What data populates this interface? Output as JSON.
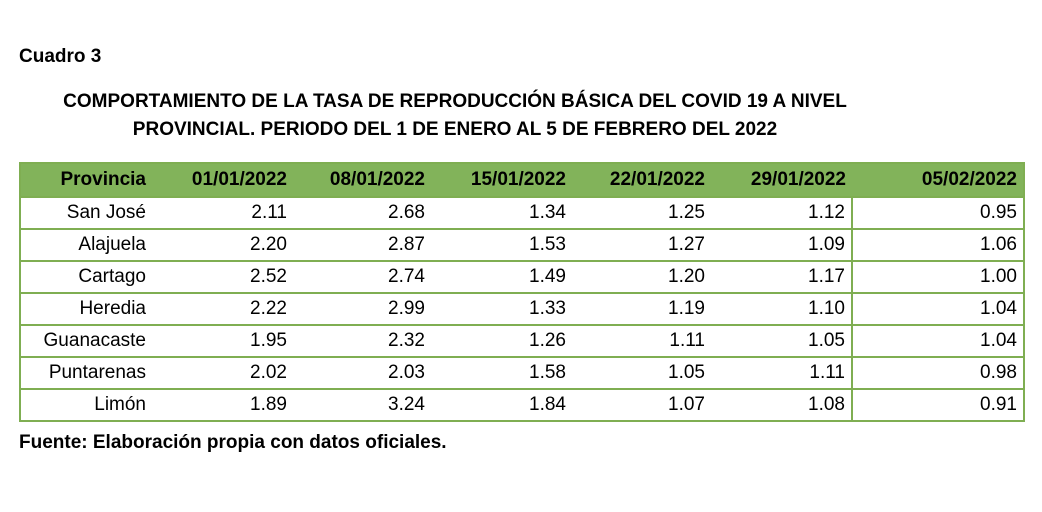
{
  "label": "Cuadro 3",
  "title_line1": "COMPORTAMIENTO DE LA TASA DE REPRODUCCIÓN BÁSICA DEL COVID 19 A NIVEL",
  "title_line2": "PROVINCIAL. PERIODO DEL 1 DE ENERO AL 5 DE FEBRERO DEL 2022",
  "table": {
    "header": [
      "Provincia",
      "01/01/2022",
      "08/01/2022",
      "15/01/2022",
      "22/01/2022",
      "29/01/2022",
      "05/02/2022"
    ],
    "rows": [
      [
        "San José",
        "2.11",
        "2.68",
        "1.34",
        "1.25",
        "1.12",
        "0.95"
      ],
      [
        "Alajuela",
        "2.20",
        "2.87",
        "1.53",
        "1.27",
        "1.09",
        "1.06"
      ],
      [
        "Cartago",
        "2.52",
        "2.74",
        "1.49",
        "1.20",
        "1.17",
        "1.00"
      ],
      [
        "Heredia",
        "2.22",
        "2.99",
        "1.33",
        "1.19",
        "1.10",
        "1.04"
      ],
      [
        "Guanacaste",
        "1.95",
        "2.32",
        "1.26",
        "1.11",
        "1.05",
        "1.04"
      ],
      [
        "Puntarenas",
        "2.02",
        "2.03",
        "1.58",
        "1.05",
        "1.11",
        "0.98"
      ],
      [
        "Limón",
        "1.89",
        "3.24",
        "1.84",
        "1.07",
        "1.08",
        "0.91"
      ]
    ]
  },
  "source": "Fuente: Elaboración propia con datos oficiales.",
  "colors": {
    "header_bg": "#82b35a",
    "border": "#7fae52"
  }
}
